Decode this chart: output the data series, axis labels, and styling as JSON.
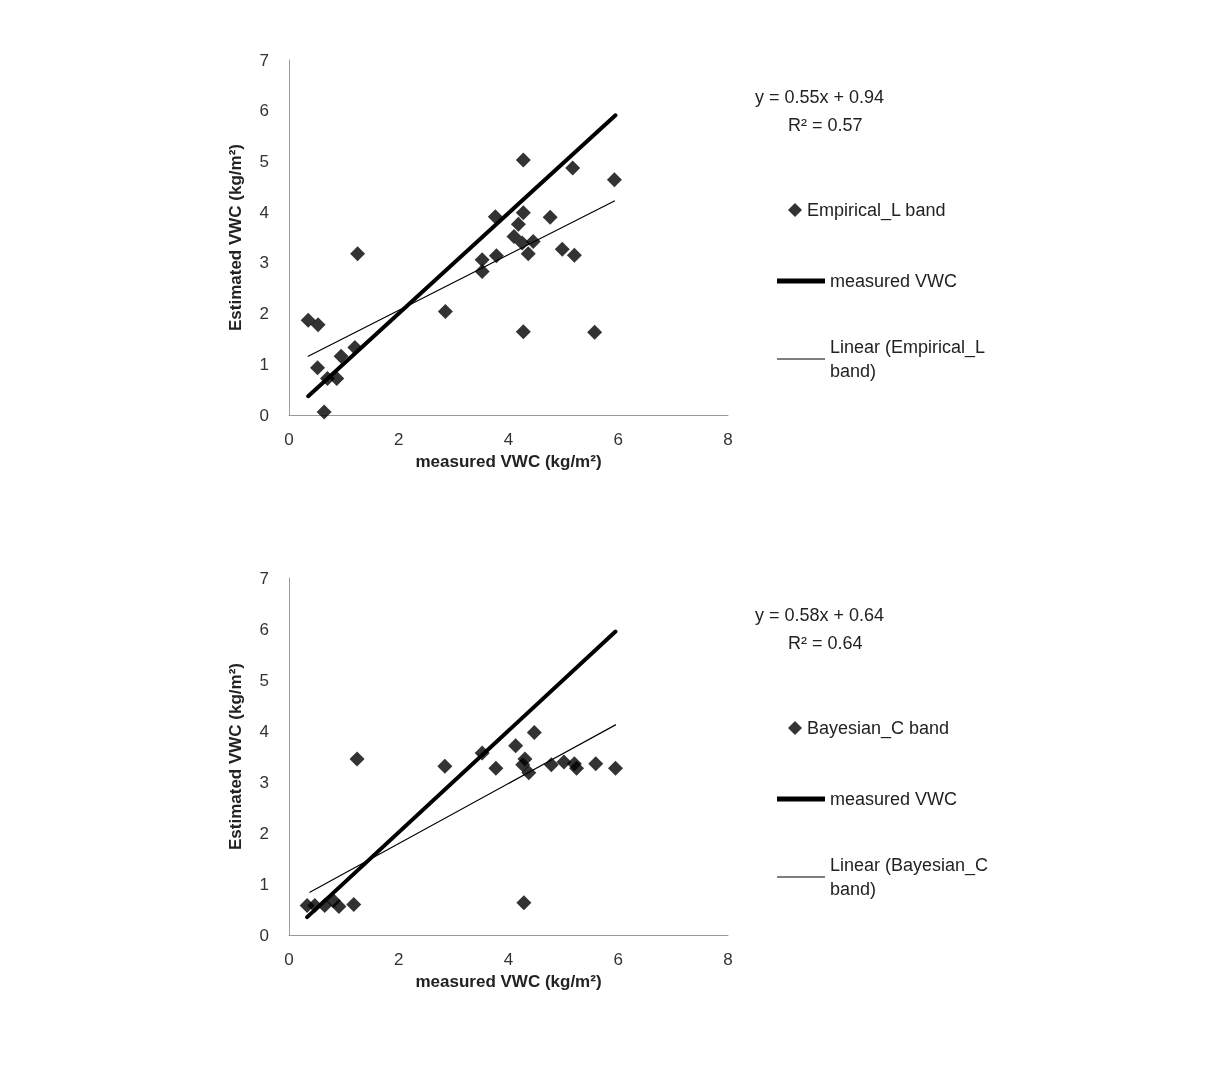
{
  "chart_data": [
    {
      "type": "scatter",
      "xlabel": "measured VWC (kg/m²)",
      "ylabel": "Estimated VWC (kg/m²)",
      "xlim": [
        0,
        8
      ],
      "xticks": [
        0,
        2,
        4,
        6,
        8
      ],
      "ylim": [
        0,
        7
      ],
      "yticks": [
        0,
        1,
        2,
        3,
        4,
        5,
        6,
        7
      ],
      "legend": "right",
      "grid": false,
      "annotations": [
        "y = 0.55x + 0.94",
        "R² = 0.57"
      ],
      "series": [
        {
          "name": "Empirical_L band",
          "marker": "diamond",
          "color": "#000000",
          "x": [
            0.35,
            0.53,
            0.52,
            0.64,
            0.7,
            0.87,
            0.95,
            1.2,
            1.25,
            2.85,
            3.52,
            3.52,
            3.76,
            3.78,
            4.1,
            4.18,
            4.27,
            4.27,
            4.25,
            4.27,
            4.36,
            4.45,
            4.76,
            4.98,
            5.17,
            5.2,
            5.57,
            5.93
          ],
          "values": [
            1.87,
            1.78,
            0.93,
            0.06,
            0.72,
            0.72,
            1.16,
            1.33,
            3.18,
            2.04,
            3.06,
            2.83,
            3.91,
            3.14,
            3.52,
            3.76,
            5.03,
            3.99,
            3.39,
            1.64,
            3.18,
            3.42,
            3.9,
            3.27,
            4.87,
            3.15,
            1.63,
            4.64
          ]
        },
        {
          "name": "measured VWC",
          "type": "line",
          "marker": "none",
          "color": "#000000",
          "x": [
            0.35,
            5.95
          ],
          "values": [
            0.37,
            5.91
          ]
        },
        {
          "name": "Linear (Empirical_L band)",
          "type": "line",
          "marker": "none",
          "color": "#000000",
          "x": [
            0.35,
            5.93
          ],
          "values": [
            1.16,
            4.22
          ]
        }
      ]
    },
    {
      "type": "scatter",
      "xlabel": "measured VWC (kg/m²)",
      "ylabel": "Estimated VWC (kg/m²)",
      "xlim": [
        0,
        8
      ],
      "xticks": [
        0,
        2,
        4,
        6,
        8
      ],
      "ylim": [
        0,
        7
      ],
      "yticks": [
        0,
        1,
        2,
        3,
        4,
        5,
        6,
        7
      ],
      "legend": "right",
      "grid": false,
      "annotations": [
        "y = 0.58x + 0.64",
        "R² = 0.64"
      ],
      "series": [
        {
          "name": "Bayesian_C band",
          "marker": "diamond",
          "color": "#000000",
          "x": [
            0.33,
            0.47,
            0.65,
            0.81,
            0.91,
            1.18,
            1.24,
            2.84,
            3.52,
            3.77,
            4.13,
            4.26,
            4.3,
            4.28,
            4.37,
            4.47,
            4.78,
            5.01,
            5.2,
            5.24,
            5.59,
            5.95
          ],
          "values": [
            0.58,
            0.58,
            0.58,
            0.67,
            0.56,
            0.6,
            3.45,
            3.31,
            3.57,
            3.27,
            3.71,
            3.34,
            3.45,
            0.63,
            3.18,
            3.97,
            3.34,
            3.39,
            3.36,
            3.27,
            3.36,
            3.27
          ]
        },
        {
          "name": "measured VWC",
          "type": "line",
          "marker": "none",
          "color": "#000000",
          "x": [
            0.33,
            5.95
          ],
          "values": [
            0.35,
            5.95
          ]
        },
        {
          "name": "Linear (Bayesian_C band)",
          "type": "line",
          "marker": "none",
          "color": "#000000",
          "x": [
            0.38,
            5.95
          ],
          "values": [
            0.84,
            4.12
          ]
        }
      ]
    }
  ]
}
